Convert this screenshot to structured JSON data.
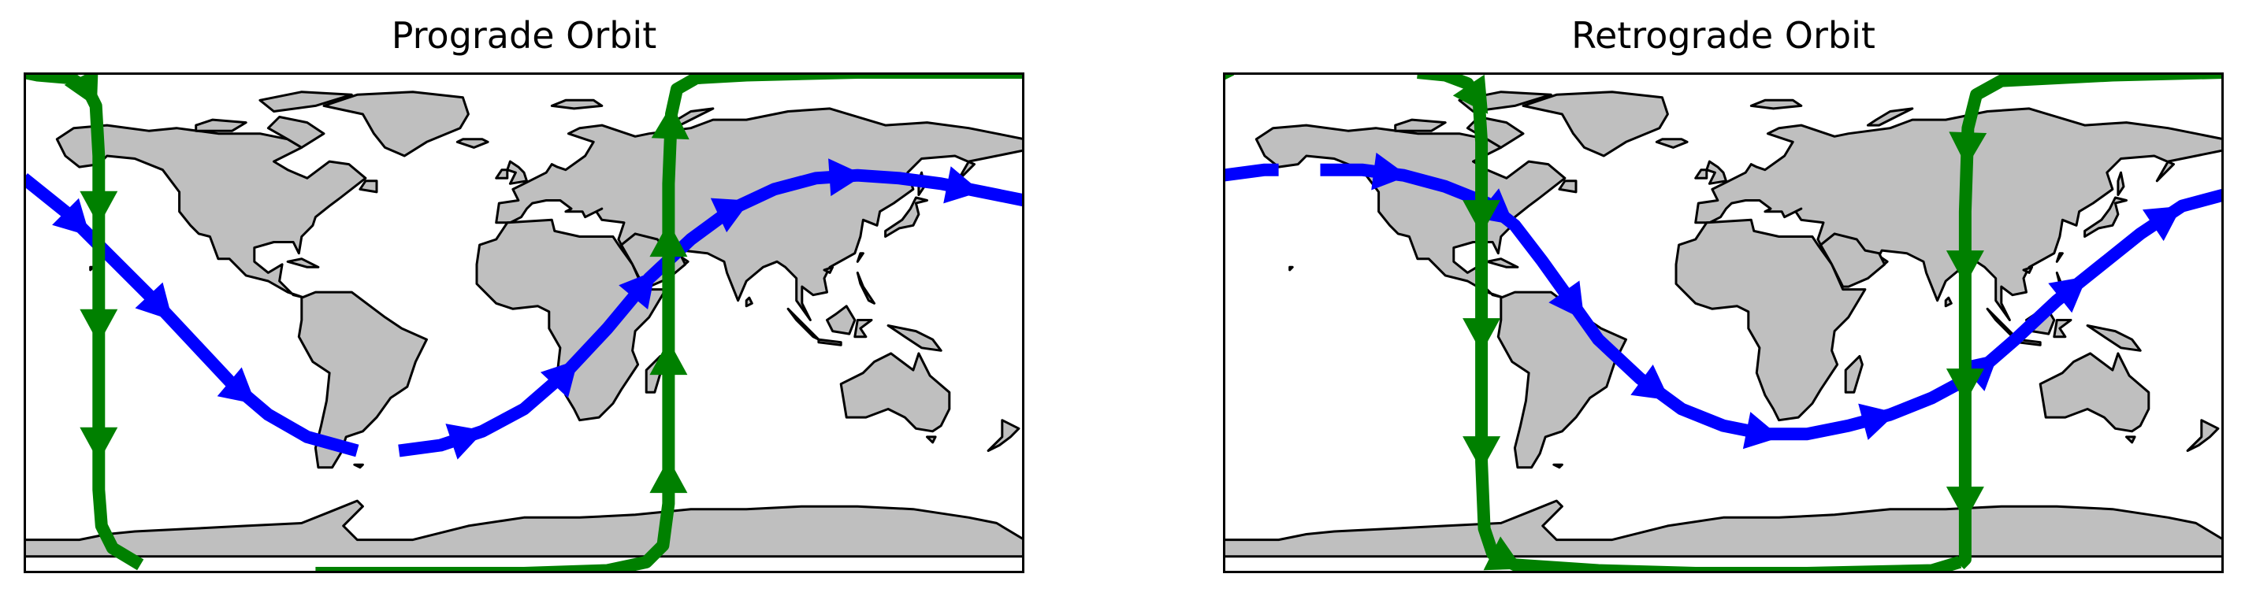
{
  "panels": [
    {
      "title": "Prograde Orbit",
      "colors": {
        "ground_track": "#0000ff",
        "polar_track": "#008000",
        "land": "#bfbfbf"
      },
      "tracks": [
        {
          "color": "#0000ff",
          "direction": "eastward",
          "segments": [
            [
              [
                -180,
                52
              ],
              [
                -165,
                40
              ],
              [
                -150,
                25
              ],
              [
                -135,
                10
              ],
              [
                -120,
                -6
              ],
              [
                -105,
                -22
              ],
              [
                -92,
                -33
              ],
              [
                -78,
                -41
              ],
              [
                -60,
                -46
              ]
            ],
            [
              [
                -45,
                -46
              ],
              [
                -30,
                -44
              ],
              [
                -15,
                -39
              ],
              [
                0,
                -31
              ],
              [
                15,
                -18
              ],
              [
                30,
                -2
              ],
              [
                45,
                16
              ],
              [
                60,
                30
              ],
              [
                75,
                41
              ],
              [
                90,
                48
              ],
              [
                105,
                52
              ],
              [
                120,
                53
              ],
              [
                135,
                52
              ],
              [
                150,
                50
              ],
              [
                165,
                47
              ],
              [
                180,
                44
              ]
            ]
          ]
        },
        {
          "color": "#008000",
          "direction": "southward",
          "segments": [
            [
              [
                -180,
                90
              ],
              [
                -175,
                89
              ],
              [
                -163,
                88
              ],
              [
                -157,
                84
              ],
              [
                -154,
                78
              ],
              [
                -153,
                60
              ],
              [
                -153,
                30
              ],
              [
                -153,
                0
              ],
              [
                -153,
                -30
              ],
              [
                -153,
                -60
              ],
              [
                -152,
                -73
              ],
              [
                -148,
                -81
              ],
              [
                -138,
                -87
              ]
            ]
          ]
        },
        {
          "color": "#008000",
          "direction": "northward",
          "segments": [
            [
              [
                -75,
                -90
              ],
              [
                -30,
                -90
              ],
              [
                0,
                -90
              ],
              [
                30,
                -89
              ],
              [
                44,
                -86
              ],
              [
                50,
                -80
              ],
              [
                52,
                -65
              ],
              [
                52,
                -40
              ],
              [
                52,
                -10
              ],
              [
                52,
                20
              ],
              [
                52,
                50
              ],
              [
                53,
                75
              ],
              [
                55,
                84
              ],
              [
                62,
                88
              ],
              [
                80,
                89
              ],
              [
                120,
                90
              ],
              [
                180,
                90
              ]
            ]
          ]
        }
      ]
    },
    {
      "title": "Retrograde Orbit",
      "colors": {
        "ground_track": "#0000ff",
        "polar_track": "#008000",
        "land": "#bfbfbf"
      },
      "tracks": [
        {
          "color": "#0000ff",
          "direction": "westward",
          "segments": [
            [
              [
                -180,
                53
              ],
              [
                -165,
                55
              ],
              [
                -160,
                55
              ]
            ],
            [
              [
                -145,
                55
              ],
              [
                -130,
                55
              ],
              [
                -115,
                53
              ],
              [
                -100,
                49
              ],
              [
                -85,
                43
              ],
              [
                -75,
                35
              ],
              [
                -65,
                22
              ],
              [
                -55,
                8
              ],
              [
                -45,
                -6
              ],
              [
                -30,
                -20
              ],
              [
                -15,
                -31
              ],
              [
                0,
                -37
              ],
              [
                15,
                -40
              ],
              [
                30,
                -40
              ],
              [
                45,
                -37
              ],
              [
                60,
                -33
              ],
              [
                75,
                -27
              ],
              [
                90,
                -19
              ],
              [
                105,
                -6
              ],
              [
                120,
                8
              ],
              [
                135,
                20
              ],
              [
                150,
                32
              ],
              [
                165,
                42
              ],
              [
                180,
                46
              ]
            ]
          ]
        },
        {
          "color": "#008000",
          "direction": "northward",
          "segments": [
            [
              [
                -110,
                90
              ],
              [
                -100,
                89
              ],
              [
                -92,
                86
              ],
              [
                -88,
                80
              ],
              [
                -87,
                65
              ],
              [
                -87,
                40
              ],
              [
                -87,
                10
              ],
              [
                -87,
                -20
              ],
              [
                -87,
                -50
              ],
              [
                -86,
                -74
              ],
              [
                -83,
                -83
              ],
              [
                -75,
                -87
              ],
              [
                -45,
                -89
              ],
              [
                -10,
                -90
              ],
              [
                30,
                -90
              ],
              [
                75,
                -89
              ],
              [
                85,
                -86
              ]
            ]
          ]
        },
        {
          "color": "#008000",
          "direction": "southward",
          "segments": [
            [
              [
                -180,
                92
              ],
              [
                -178,
                88
              ]
            ],
            [
              [
                180,
                90
              ],
              [
                140,
                89
              ],
              [
                100,
                87
              ],
              [
                91,
                82
              ],
              [
                88,
                70
              ],
              [
                87,
                40
              ],
              [
                87,
                10
              ],
              [
                87,
                -20
              ],
              [
                87,
                -50
              ],
              [
                87,
                -75
              ],
              [
                87,
                -85
              ],
              [
                85,
                -87
              ]
            ]
          ]
        }
      ]
    }
  ]
}
